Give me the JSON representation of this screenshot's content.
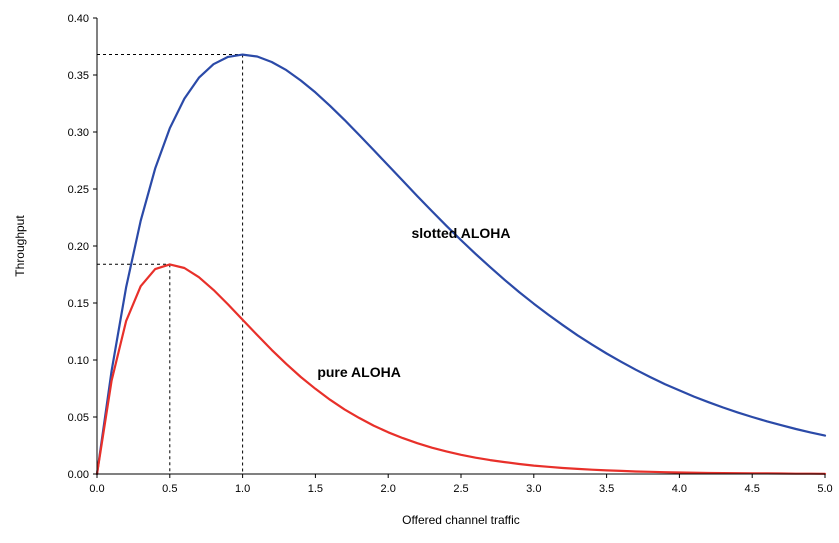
{
  "chart_data": {
    "type": "line",
    "title": "",
    "xlabel": "Offered channel traffic",
    "ylabel": "Throughput",
    "xlim": [
      0,
      5
    ],
    "ylim": [
      0,
      0.4
    ],
    "grid": false,
    "legend": "none",
    "x_ticks": [
      "0.0",
      "0.5",
      "1.0",
      "1.5",
      "2.0",
      "2.5",
      "3.0",
      "3.5",
      "4.0",
      "4.5",
      "5.0"
    ],
    "y_ticks": [
      "0.00",
      "0.05",
      "0.10",
      "0.15",
      "0.20",
      "0.25",
      "0.30",
      "0.35",
      "0.40"
    ],
    "x": [
      0,
      0.1,
      0.2,
      0.3,
      0.4,
      0.5,
      0.6,
      0.7,
      0.8,
      0.9,
      1.0,
      1.1,
      1.2,
      1.3,
      1.4,
      1.5,
      1.6,
      1.7,
      1.8,
      1.9,
      2.0,
      2.1,
      2.2,
      2.3,
      2.4,
      2.5,
      2.6,
      2.7,
      2.8,
      2.9,
      3.0,
      3.1,
      3.2,
      3.3,
      3.4,
      3.5,
      3.6,
      3.7,
      3.8,
      3.9,
      4.0,
      4.1,
      4.2,
      4.3,
      4.4,
      4.5,
      4.6,
      4.7,
      4.8,
      4.9,
      5.0
    ],
    "series": [
      {
        "name": "slotted ALOHA",
        "color": "#2b4aa8",
        "values": [
          0,
          0.0905,
          0.1637,
          0.2222,
          0.2681,
          0.3033,
          0.3293,
          0.3476,
          0.3595,
          0.3659,
          0.3679,
          0.3662,
          0.3614,
          0.3543,
          0.3452,
          0.3347,
          0.323,
          0.3106,
          0.2975,
          0.2842,
          0.2707,
          0.2572,
          0.2438,
          0.2306,
          0.2177,
          0.2052,
          0.1931,
          0.1815,
          0.1703,
          0.1596,
          0.1494,
          0.1397,
          0.1305,
          0.1217,
          0.1135,
          0.1057,
          0.0984,
          0.0915,
          0.085,
          0.0789,
          0.0733,
          0.0679,
          0.063,
          0.0583,
          0.054,
          0.05,
          0.0462,
          0.0428,
          0.0395,
          0.0365,
          0.0337
        ]
      },
      {
        "name": "pure ALOHA",
        "color": "#e8302a",
        "values": [
          0,
          0.0819,
          0.1341,
          0.1647,
          0.1797,
          0.1839,
          0.1807,
          0.1726,
          0.1615,
          0.1488,
          0.1353,
          0.1219,
          0.1089,
          0.0966,
          0.0851,
          0.0747,
          0.0652,
          0.0567,
          0.0492,
          0.0425,
          0.0366,
          0.0315,
          0.027,
          0.0231,
          0.0198,
          0.0168,
          0.0143,
          0.0122,
          0.0104,
          0.0088,
          0.0074,
          0.0063,
          0.0053,
          0.0045,
          0.0038,
          0.0032,
          0.0027,
          0.0022,
          0.0019,
          0.0016,
          0.0013,
          0.0011,
          0.0009,
          0.0008,
          0.0007,
          0.0006,
          0.0005,
          0.0004,
          0.0003,
          0.0003,
          0.0002
        ]
      }
    ],
    "reference_lines": [
      {
        "x": 1.0,
        "y": 0.368
      },
      {
        "x": 0.5,
        "y": 0.184
      }
    ],
    "annotations": [
      {
        "text": "slotted ALOHA",
        "x": 2.5,
        "y": 0.207
      },
      {
        "text": "pure ALOHA",
        "x": 1.8,
        "y": 0.085
      }
    ]
  }
}
